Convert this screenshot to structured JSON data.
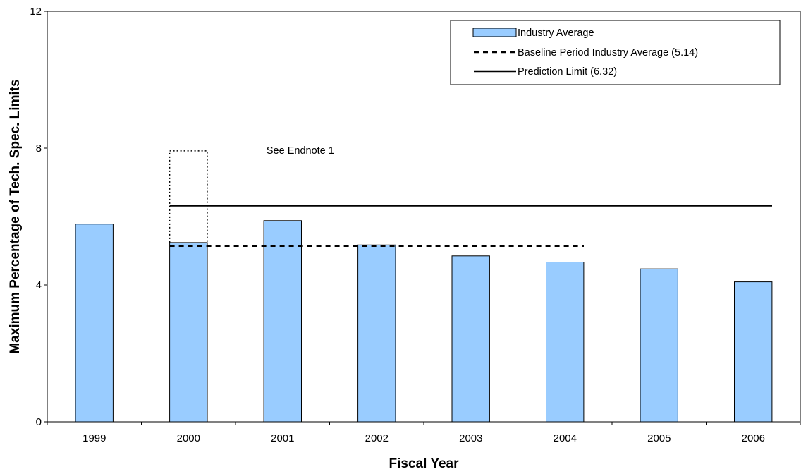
{
  "chart_data": {
    "type": "bar",
    "title": "",
    "xlabel": "Fiscal Year",
    "ylabel": "Maximum Percentage of Tech. Spec. Limits",
    "ylim": [
      0,
      12
    ],
    "yticks": [
      0,
      4,
      8,
      12
    ],
    "grid": false,
    "legend_position": "top-right",
    "categories": [
      "1999",
      "2000",
      "2001",
      "2002",
      "2003",
      "2004",
      "2005",
      "2006"
    ],
    "series": [
      {
        "name": "Industry Average",
        "type": "bar",
        "values": [
          5.78,
          5.24,
          5.88,
          5.17,
          4.85,
          4.67,
          4.47,
          4.09
        ],
        "color": "#99CCFF"
      }
    ],
    "reference_lines": [
      {
        "name": "Baseline Period Industry Average (5.14)",
        "value": 5.14,
        "style": "dashed",
        "from_category": "2000",
        "to_category": "2004",
        "color": "#000000"
      },
      {
        "name": "Prediction Limit (6.32)",
        "value": 6.32,
        "style": "solid",
        "from_category": "2000",
        "to_category": "2006",
        "color": "#000000"
      }
    ],
    "annotations": [
      {
        "text": "See Endnote 1",
        "category": "2000",
        "dotted_box_top": 7.92
      }
    ]
  }
}
